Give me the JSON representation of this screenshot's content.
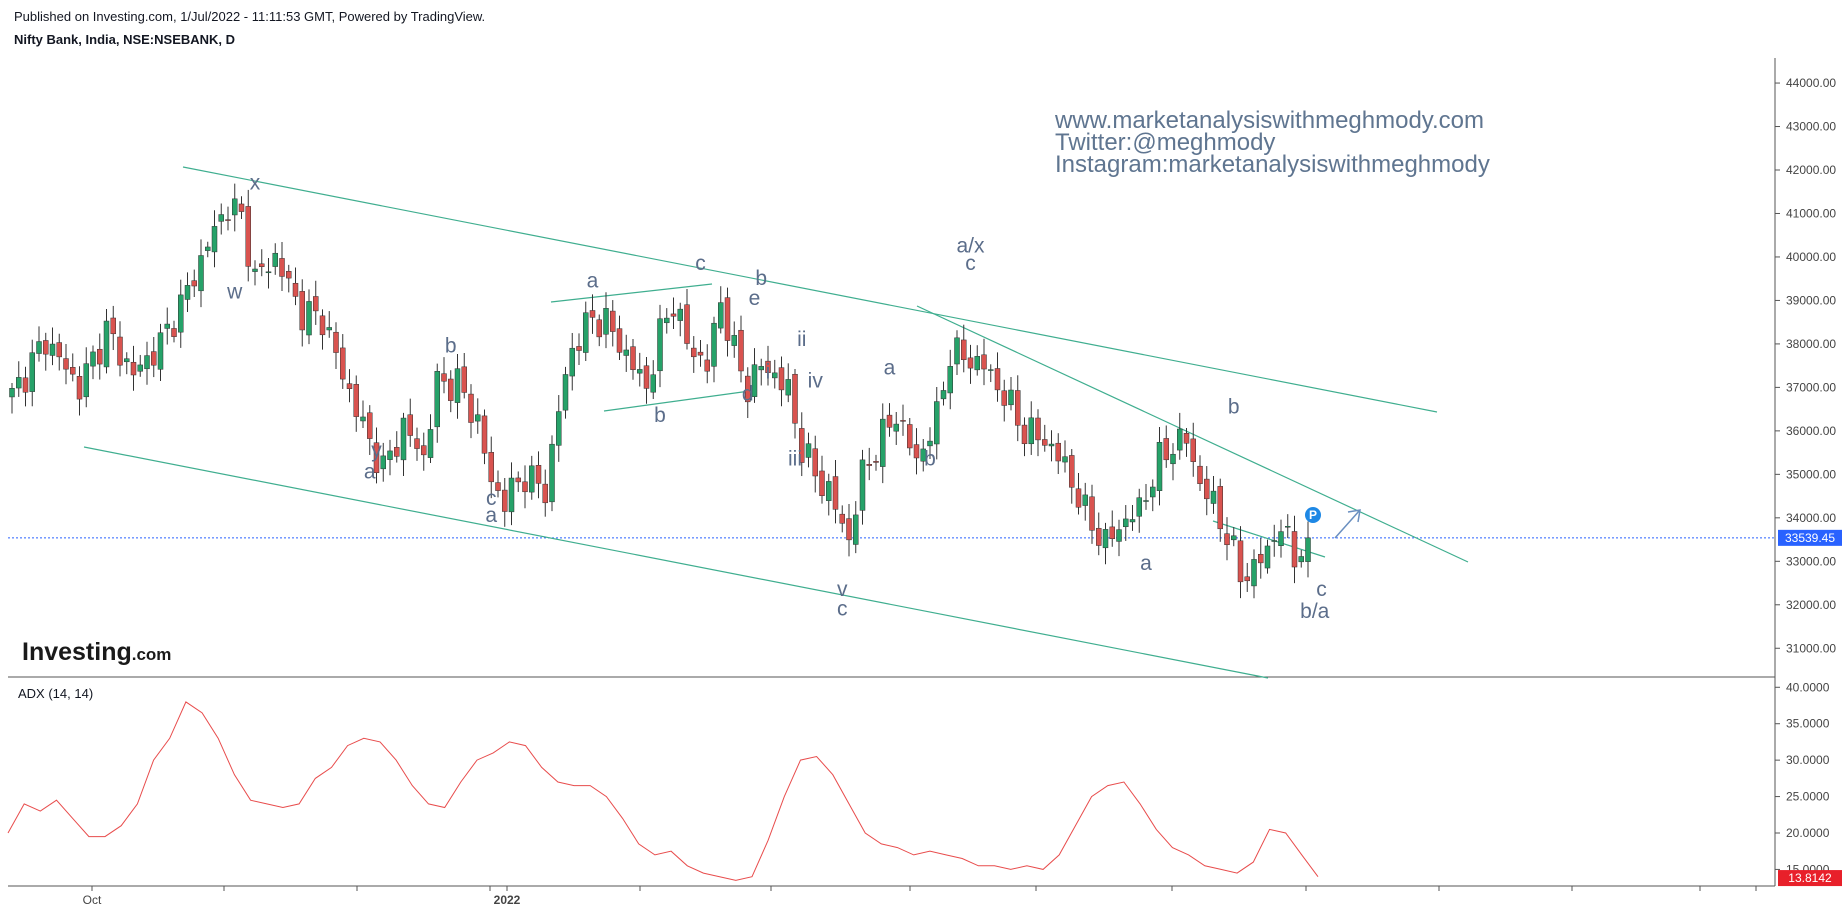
{
  "header": {
    "published": "Published on Investing.com, 1/Jul/2022 - 11:11:53 GMT, Powered by TradingView.",
    "symbol": "Nifty Bank, India, NSE:NSEBANK, D"
  },
  "watermark": {
    "line1": "www.marketanalysiswithmeghmody.com",
    "line2": "Twitter:@meghmody",
    "line3": "Instagram:marketanalysiswithmeghmody"
  },
  "logo": {
    "main": "Investing",
    "suffix": ".com"
  },
  "indicator": {
    "name": "ADX (14, 14)"
  },
  "tags": {
    "last_price": "33539.45",
    "adx_value": "13.8142",
    "p_badge": "P"
  },
  "colors": {
    "up": "#26a269",
    "down": "#d9534f",
    "trend": "#3fae8f",
    "adx": "#e84c4c",
    "tag": "#2962ff",
    "adxtag": "#e8202a",
    "wave": "#5b6d8a"
  },
  "chart_data": [
    {
      "type": "candlestick",
      "title": "Nifty Bank, India, NSE:NSEBANK, D",
      "ylim": [
        30500,
        44300
      ],
      "y_ticks": [
        "44000.00",
        "43000.00",
        "42000.00",
        "41000.00",
        "40000.00",
        "39000.00",
        "38000.00",
        "37000.00",
        "36000.00",
        "35000.00",
        "34000.00",
        "33000.00",
        "32000.00",
        "31000.00"
      ],
      "x_ticks": [
        "Oct",
        "2022"
      ],
      "last_price": 33539.45,
      "close_path": [
        [
          0,
          36800
        ],
        [
          5,
          38100
        ],
        [
          10,
          37000
        ],
        [
          14,
          38300
        ],
        [
          18,
          37300
        ],
        [
          22,
          38000
        ],
        [
          26,
          39200
        ],
        [
          29,
          40300
        ],
        [
          32,
          41200
        ],
        [
          34,
          40900
        ],
        [
          36,
          39500
        ],
        [
          39,
          40000
        ],
        [
          43,
          38700
        ],
        [
          46,
          38600
        ],
        [
          49,
          37300
        ],
        [
          52,
          36100
        ],
        [
          55,
          35100
        ],
        [
          58,
          36100
        ],
        [
          61,
          35400
        ],
        [
          63,
          37100
        ],
        [
          66,
          37100
        ],
        [
          69,
          36200
        ],
        [
          71,
          34800
        ],
        [
          73,
          34400
        ],
        [
          76,
          35000
        ],
        [
          79,
          34600
        ],
        [
          81,
          36500
        ],
        [
          83,
          37900
        ],
        [
          86,
          38600
        ],
        [
          88,
          38500
        ],
        [
          90,
          38000
        ],
        [
          92,
          37500
        ],
        [
          94,
          37000
        ],
        [
          96,
          38200
        ],
        [
          98,
          39000
        ],
        [
          100,
          38000
        ],
        [
          103,
          37500
        ],
        [
          105,
          39000
        ],
        [
          107,
          37800
        ],
        [
          109,
          37000
        ],
        [
          111,
          37500
        ],
        [
          113,
          37300
        ],
        [
          115,
          36900
        ],
        [
          117,
          35600
        ],
        [
          119,
          35000
        ],
        [
          121,
          34600
        ],
        [
          124,
          33500
        ],
        [
          126,
          35000
        ],
        [
          128,
          35600
        ],
        [
          131,
          36400
        ],
        [
          134,
          35300
        ],
        [
          137,
          36300
        ],
        [
          139,
          37800
        ],
        [
          141,
          37700
        ],
        [
          144,
          37500
        ],
        [
          147,
          36800
        ],
        [
          150,
          36000
        ],
        [
          153,
          35800
        ],
        [
          156,
          35200
        ],
        [
          159,
          34100
        ],
        [
          162,
          33400
        ],
        [
          164,
          33800
        ],
        [
          167,
          34200
        ],
        [
          170,
          35300
        ],
        [
          172,
          35700
        ],
        [
          174,
          35800
        ],
        [
          176,
          34800
        ],
        [
          178,
          34300
        ],
        [
          180,
          33600
        ],
        [
          182,
          32700
        ],
        [
          184,
          32800
        ],
        [
          186,
          33300
        ],
        [
          188,
          33800
        ],
        [
          190,
          33100
        ],
        [
          192,
          33540
        ]
      ],
      "wave_labels": [
        {
          "text": "w",
          "x": 33,
          "y": 39050
        },
        {
          "text": "x",
          "x": 36,
          "y": 41550
        },
        {
          "text": "y",
          "x": 54,
          "y": 35400
        },
        {
          "text": "a",
          "x": 53,
          "y": 34900
        },
        {
          "text": "b",
          "x": 65,
          "y": 37800
        },
        {
          "text": "c",
          "x": 71,
          "y": 34300
        },
        {
          "text": "a",
          "x": 71,
          "y": 33900
        },
        {
          "text": "a",
          "x": 86,
          "y": 39300
        },
        {
          "text": "b",
          "x": 96,
          "y": 36200
        },
        {
          "text": "c",
          "x": 102,
          "y": 39700
        },
        {
          "text": "b",
          "x": 111,
          "y": 39350
        },
        {
          "text": "e",
          "x": 110,
          "y": 38900
        },
        {
          "text": "d",
          "x": 109,
          "y": 36700
        },
        {
          "text": "i",
          "x": 112,
          "y": 37200
        },
        {
          "text": "ii",
          "x": 117,
          "y": 37950
        },
        {
          "text": "iv",
          "x": 119,
          "y": 37000
        },
        {
          "text": "iii",
          "x": 116,
          "y": 35200
        },
        {
          "text": "v",
          "x": 123,
          "y": 32200
        },
        {
          "text": "c",
          "x": 123,
          "y": 31750
        },
        {
          "text": "a",
          "x": 130,
          "y": 37300
        },
        {
          "text": "b",
          "x": 136,
          "y": 35200
        },
        {
          "text": "a/x",
          "x": 142,
          "y": 40100
        },
        {
          "text": "c",
          "x": 142,
          "y": 39700
        },
        {
          "text": "a",
          "x": 168,
          "y": 32800
        },
        {
          "text": "b",
          "x": 181,
          "y": 36400
        },
        {
          "text": "c",
          "x": 194,
          "y": 32200
        },
        {
          "text": "b/a",
          "x": 193,
          "y": 31700
        }
      ]
    },
    {
      "type": "line",
      "title": "ADX (14, 14)",
      "ylim": [
        13,
        41
      ],
      "y_ticks": [
        "40.0000",
        "35.0000",
        "30.0000",
        "25.0000",
        "20.0000",
        "15.0000"
      ],
      "last_value": 13.8142,
      "series": [
        {
          "values": [
            20,
            24,
            23,
            24.5,
            22,
            19.5,
            19.5,
            21,
            24,
            30,
            33,
            38,
            36.5,
            33,
            28,
            24.5,
            24,
            23.5,
            24,
            27.5,
            29,
            32,
            33,
            32.5,
            30,
            26.5,
            24,
            23.5,
            27,
            30,
            31,
            32.5,
            32,
            29,
            27,
            26.5,
            26.5,
            25,
            22,
            18.5,
            17,
            17.5,
            15.5,
            14.5,
            14,
            13.5,
            14,
            19,
            25,
            30,
            30.5,
            28,
            24,
            20,
            18.5,
            18,
            17,
            17.5,
            17,
            16.5,
            15.5,
            15.5,
            15,
            15.5,
            15,
            17,
            21,
            25,
            26.5,
            27,
            24,
            20.5,
            18,
            17,
            15.5,
            15,
            14.5,
            16,
            20.5,
            20,
            17,
            14
          ]
        }
      ]
    }
  ]
}
